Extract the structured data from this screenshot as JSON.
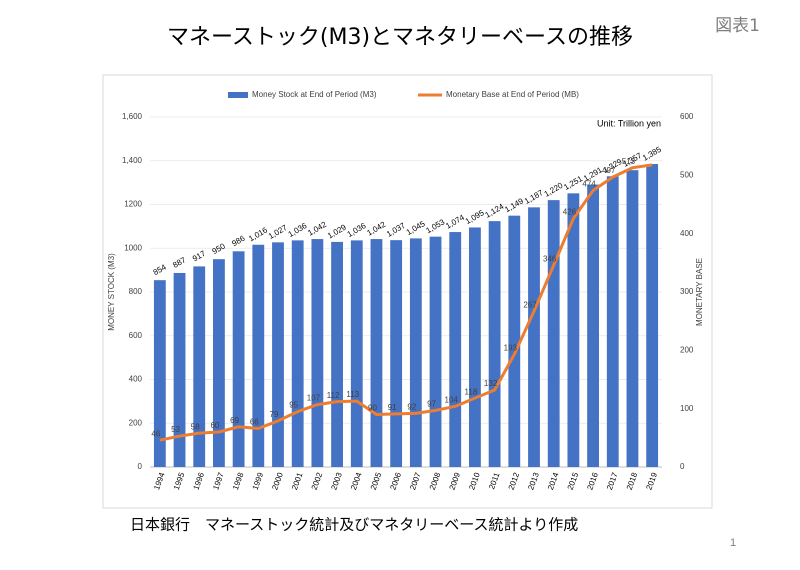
{
  "title": "マネーストック(M3)とマネタリーベースの推移",
  "figure_label": "図表1",
  "source": "日本銀行　マネーストック統計及びマネタリーベース統計より作成",
  "page_number": "1",
  "chart_data": {
    "type": "bar",
    "categories": [
      "1994",
      "1995",
      "1996",
      "1997",
      "1998",
      "1999",
      "2000",
      "2001",
      "2002",
      "2003",
      "2004",
      "2005",
      "2006",
      "2007",
      "2008",
      "2009",
      "2010",
      "2011",
      "2012",
      "2013",
      "2014",
      "2015",
      "2016",
      "2017",
      "2018",
      "2019"
    ],
    "series": [
      {
        "name": "Money Stock at End of Period (M3)",
        "type": "bar",
        "color": "#4472c4",
        "values": [
          854,
          887,
          917,
          950,
          986,
          1016,
          1027,
          1036,
          1042,
          1029,
          1036,
          1042,
          1037,
          1045,
          1053,
          1074,
          1095,
          1124,
          1149,
          1187,
          1220,
          1251,
          1291,
          1329,
          1357,
          1385
        ],
        "value_labels": [
          "854",
          "887",
          "917",
          "950",
          "986",
          "1,016",
          "1,027",
          "1,036",
          "1,042",
          "1,029",
          "1,036",
          "1,042",
          "1,037",
          "1,045",
          "1,053",
          "1,074",
          "1,095",
          "1,124",
          "1,149",
          "1,187",
          "1,220",
          "1,251",
          "1,291",
          "1,329",
          "1,357",
          "1,385"
        ]
      },
      {
        "name": "Monetary Base at End of Period (MB)",
        "type": "line",
        "axis": "y2",
        "color": "#ed7d31",
        "values": [
          46,
          53,
          58,
          60,
          69,
          66,
          79,
          95,
          107,
          112,
          113,
          90,
          91,
          92,
          97,
          104,
          118,
          132,
          193,
          267,
          346,
          426,
          474,
          497,
          513,
          518
        ],
        "value_labels": [
          "46",
          "53",
          "58",
          "60",
          "69",
          "66",
          "79",
          "95",
          "107",
          "112",
          "113",
          "90",
          "91",
          "92",
          "97",
          "104",
          "118",
          "132",
          "193",
          "267",
          "346",
          "426",
          "474",
          "497",
          "513",
          null
        ]
      }
    ],
    "ylabel": "MONEY STOCK (M3)",
    "y2label": "MONETARY BASE",
    "annotation": "Unit: Trillion yen",
    "ylim": [
      0,
      1600
    ],
    "yticks": [
      0,
      200,
      400,
      600,
      800,
      1000,
      1200,
      {
        "value": 1400,
        "label": "1,400"
      },
      {
        "value": 1600,
        "label": "1,600"
      }
    ],
    "y2lim": [
      0,
      600
    ],
    "y2ticks": [
      0,
      100,
      200,
      300,
      400,
      500,
      600
    ],
    "grid": true,
    "legend": "top"
  }
}
